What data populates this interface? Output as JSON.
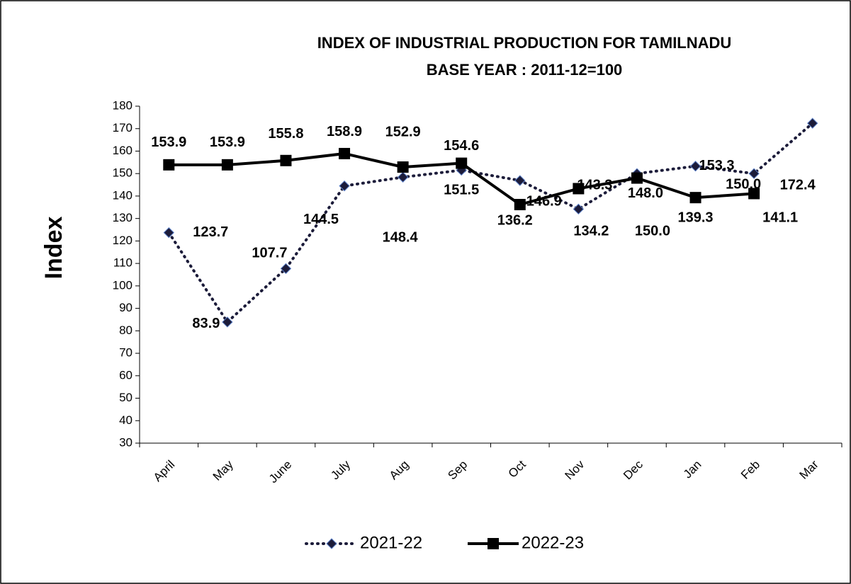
{
  "chart_data": {
    "type": "line",
    "title": "INDEX OF INDUSTRIAL PRODUCTION FOR TAMILNADU",
    "subtitle": "BASE YEAR : 2011-12=100",
    "y_label": "Index",
    "categories": [
      "April",
      "May",
      "June",
      "July",
      "Aug",
      "Sep",
      "Oct",
      "Nov",
      "Dec",
      "Jan",
      "Feb",
      "Mar"
    ],
    "series": [
      {
        "name": "2021-22",
        "color": "#1c1c3a",
        "style": "dotted",
        "marker": "diamond",
        "values": [
          123.7,
          83.9,
          107.7,
          144.5,
          148.4,
          151.5,
          146.9,
          134.2,
          150.0,
          153.3,
          150.0,
          172.4
        ],
        "value_labels": [
          "123.7",
          "83.9",
          "107.7",
          "144.5",
          "148.4",
          "151.5",
          "146.9",
          "134.2",
          "150.0",
          "153.3",
          "150.0",
          "172.4"
        ]
      },
      {
        "name": "2022-23",
        "color": "#000000",
        "style": "solid",
        "marker": "square",
        "values": [
          153.9,
          153.9,
          155.8,
          158.9,
          152.9,
          154.6,
          136.2,
          143.3,
          148.0,
          139.3,
          141.1,
          null
        ],
        "value_labels": [
          "153.9",
          "153.9",
          "155.8",
          "158.9",
          "152.9",
          "154.6",
          "136.2",
          "143.3",
          "148.0",
          "139.3",
          "141.1",
          null
        ]
      }
    ],
    "ylim": [
      30,
      180
    ],
    "yticks": [
      30,
      40,
      50,
      60,
      70,
      80,
      90,
      100,
      110,
      120,
      130,
      140,
      150,
      160,
      170,
      180
    ],
    "grid": false,
    "legend": "bottom"
  }
}
